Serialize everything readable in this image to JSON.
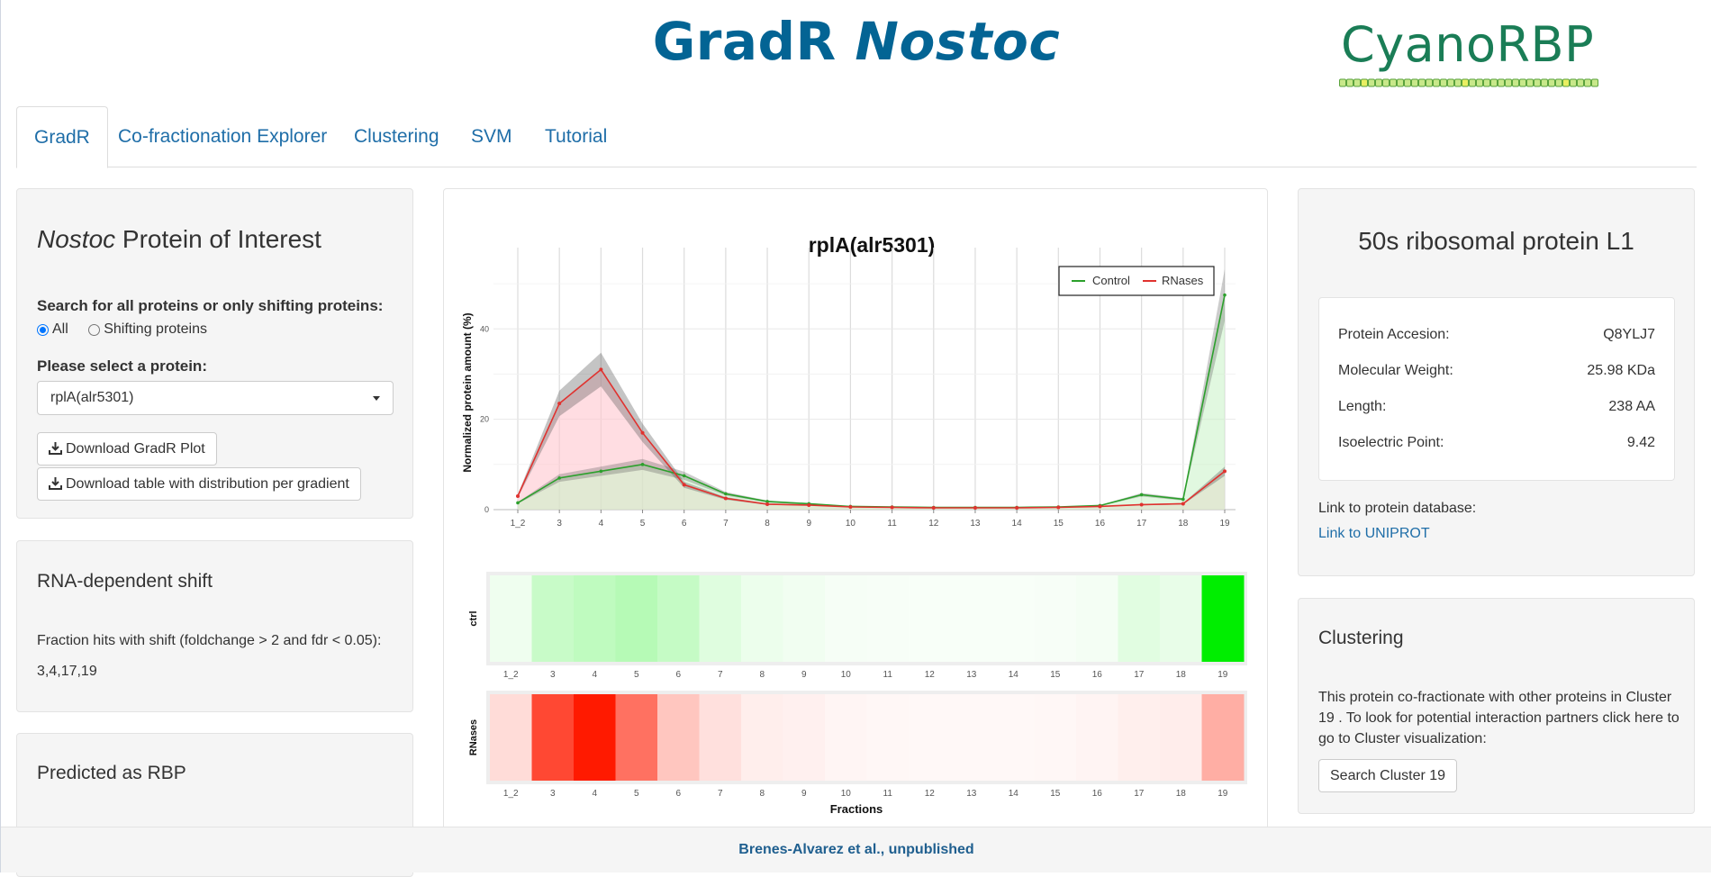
{
  "header": {
    "title_plain": "GradR ",
    "title_italic": "Nostoc",
    "logo_text": "CyanoRBP"
  },
  "tabs": [
    {
      "label": "GradR",
      "active": true
    },
    {
      "label": "Co-fractionation Explorer",
      "active": false
    },
    {
      "label": "Clustering",
      "active": false
    },
    {
      "label": "SVM",
      "active": false
    },
    {
      "label": "Tutorial",
      "active": false
    }
  ],
  "left": {
    "poi_title_italic": "Nostoc",
    "poi_title_rest": " Protein of Interest",
    "search_label": "Search for all proteins or only shifting proteins:",
    "radio_all": "All",
    "radio_shifting": "Shifting proteins",
    "select_label": "Please select a protein:",
    "select_value": "rplA(alr5301)",
    "download_plot": "Download GradR Plot",
    "download_table": "Download table with distribution per gradient",
    "shift_title": "RNA-dependent shift",
    "shift_text": "Fraction hits with shift (foldchange > 2 and fdr < 0.05):",
    "shift_values": "3,4,17,19",
    "rbp_title": "Predicted as RBP"
  },
  "right": {
    "protein_name": "50s ribosomal protein L1",
    "info": [
      {
        "label": "Protein Accesion:",
        "value": "Q8YLJ7"
      },
      {
        "label": "Molecular Weight:",
        "value": "25.98 KDa"
      },
      {
        "label": "Length:",
        "value": "238 AA"
      },
      {
        "label": "Isoelectric Point:",
        "value": "9.42"
      }
    ],
    "db_label": "Link to protein database:",
    "db_link": "Link to UNIPROT",
    "cluster_title": "Clustering",
    "cluster_text_1": "This protein co-fractionate with other proteins in Cluster",
    "cluster_text_2": "19 . To look for potential interaction partners click here to",
    "cluster_text_3": "go to Cluster visualization:",
    "cluster_button": "Search Cluster 19"
  },
  "footer": {
    "text": "Brenes-Alvarez et al., unpublished"
  },
  "colors": {
    "control": "#2ca02c",
    "rnases": "#e0322f",
    "title": "#036494"
  },
  "chart_data": {
    "type": "line",
    "title": "rplA(alr5301)",
    "ylabel": "Normalized protein amount (%)",
    "xlabel": "Fractions",
    "categories": [
      "1_2",
      "3",
      "4",
      "5",
      "6",
      "7",
      "8",
      "9",
      "10",
      "11",
      "12",
      "13",
      "14",
      "15",
      "16",
      "17",
      "18",
      "19"
    ],
    "ylim": [
      0,
      55
    ],
    "yticks": [
      "0",
      "20",
      "40"
    ],
    "yticks_values": [
      0,
      20,
      40
    ],
    "legend_position": "top-right",
    "series": [
      {
        "name": "Control",
        "color": "#2ca02c",
        "values": [
          1.5,
          7,
          8.5,
          10,
          7.5,
          3.5,
          1.8,
          1.3,
          0.7,
          0.6,
          0.5,
          0.5,
          0.5,
          0.6,
          0.9,
          3.3,
          2.3,
          47.5
        ]
      },
      {
        "name": "RNases",
        "color": "#e0322f",
        "values": [
          3.0,
          23.5,
          31,
          17,
          5.5,
          2.5,
          1.2,
          1.0,
          0.6,
          0.5,
          0.4,
          0.4,
          0.4,
          0.5,
          0.7,
          1.1,
          1.3,
          8.5
        ]
      }
    ],
    "heatmap_rows": [
      "ctrl",
      "RNases"
    ]
  }
}
